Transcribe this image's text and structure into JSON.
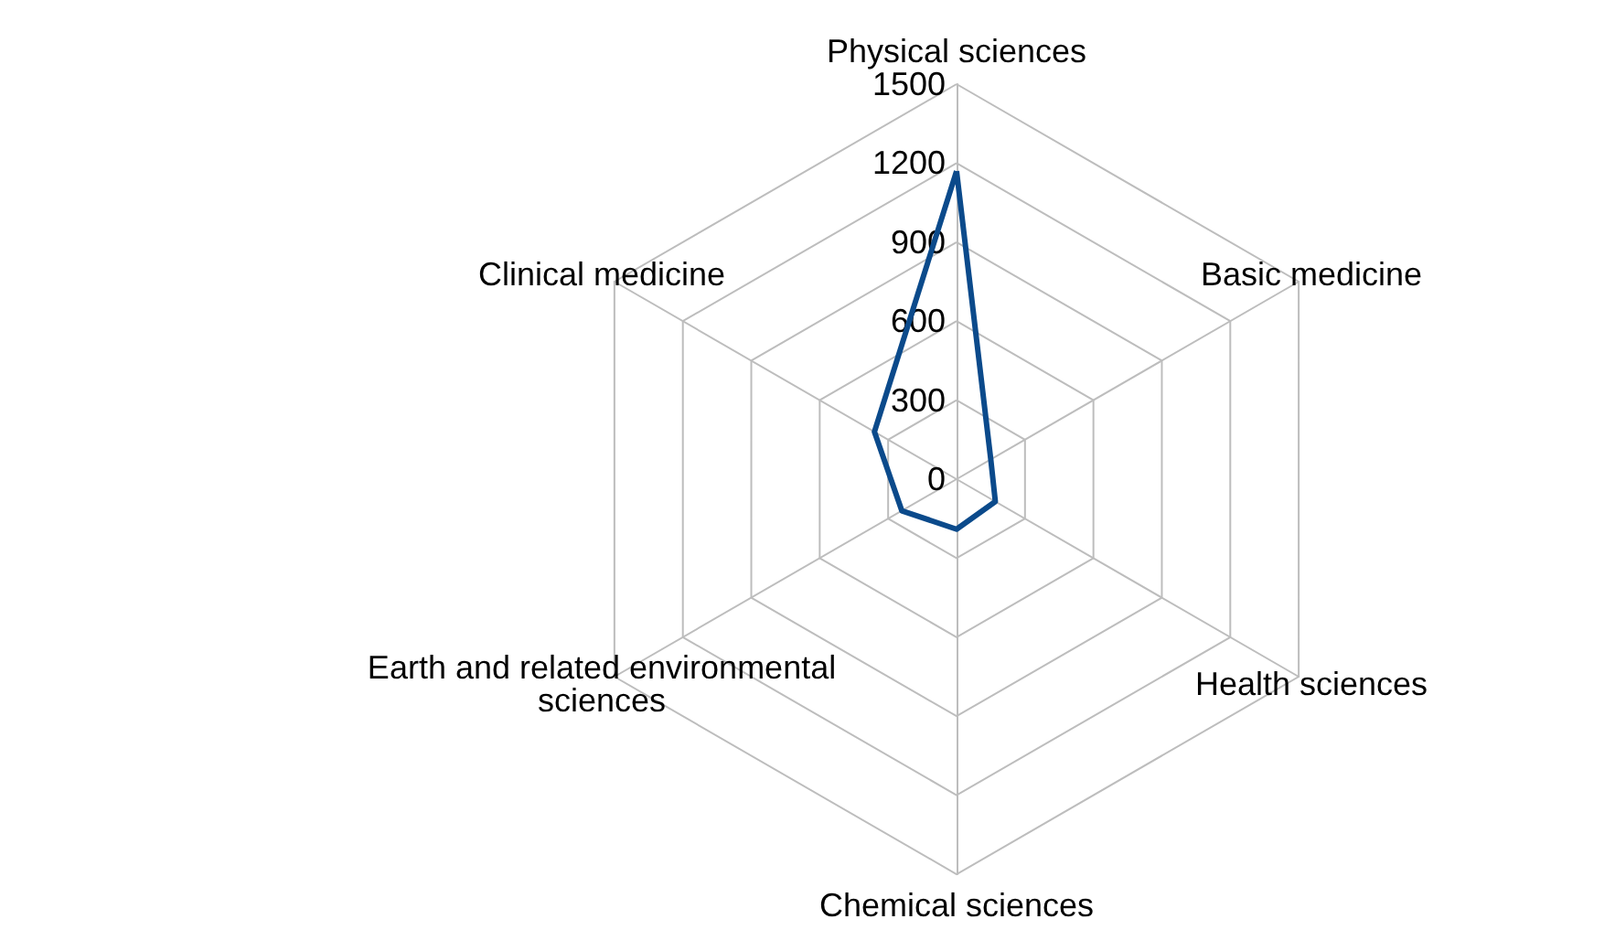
{
  "chart_data": {
    "type": "radar",
    "categories": [
      "Physical sciences",
      "Basic medicine",
      "Health sciences",
      "Chemical sciences",
      "Earth and related environmental sciences",
      "Clinical medicine"
    ],
    "series": [
      {
        "color": "#0b4a8b",
        "values": [
          1170,
          150,
          170,
          190,
          240,
          360
        ]
      }
    ],
    "ylim": [
      0,
      1500
    ],
    "yticks": [
      0,
      300,
      600,
      900,
      1200,
      1500
    ],
    "grid": true,
    "marker": "none",
    "line_style": "solid",
    "legend": false
  }
}
